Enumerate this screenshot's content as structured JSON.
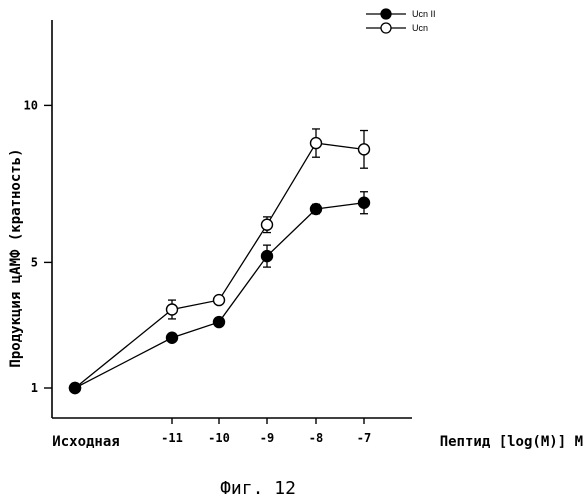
{
  "chart_data": {
    "type": "line",
    "ylabel": "Продукция цАМФ (кратность)",
    "xlabel": "Пептид [log(M)] M",
    "categories": [
      "Исходная",
      "-11",
      "-10",
      "-9",
      "-8",
      "-7"
    ],
    "yticks": [
      "1",
      "5",
      "10"
    ],
    "ylim": [
      0,
      13
    ],
    "caption": "Фиг. 12",
    "legend_position": "top-right",
    "series": [
      {
        "name": "Ucn II",
        "marker": "filled",
        "color": "#000000",
        "values": [
          1,
          2.6,
          3.1,
          5.2,
          6.7,
          6.9
        ],
        "errors": [
          0,
          0,
          0,
          0.35,
          0.15,
          0.35
        ]
      },
      {
        "name": "Ucn",
        "marker": "open",
        "color": "#000000",
        "values": [
          1,
          3.5,
          3.8,
          6.2,
          8.8,
          8.6
        ],
        "errors": [
          0,
          0.3,
          0,
          0.25,
          0.45,
          0.6
        ]
      }
    ]
  }
}
